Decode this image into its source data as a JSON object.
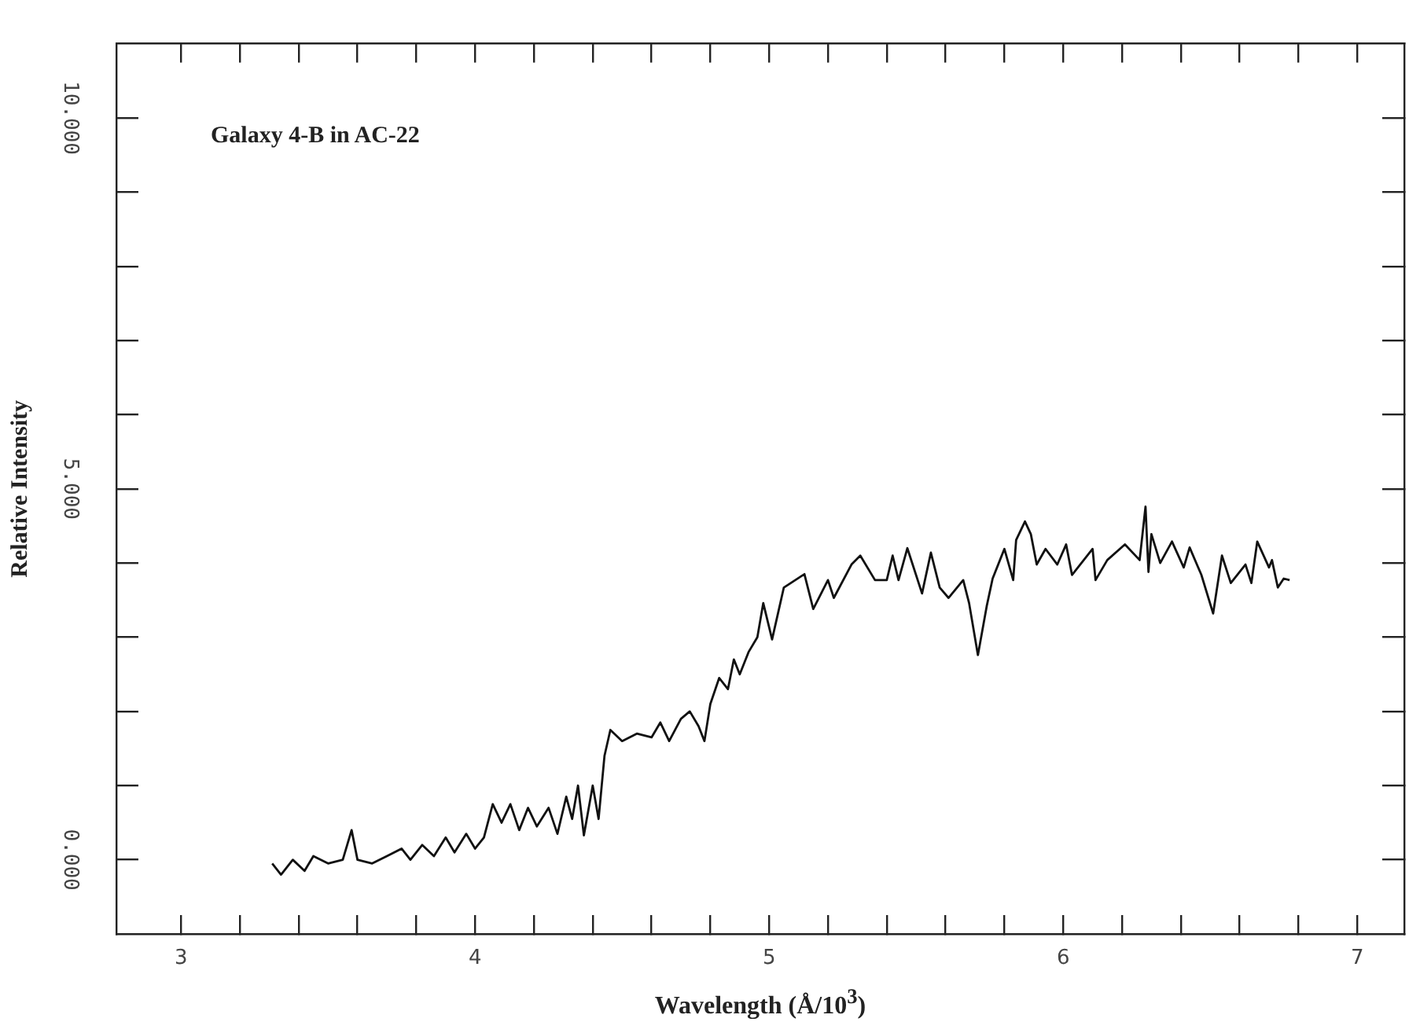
{
  "chart_data": {
    "type": "line",
    "title": "Galaxy 4-B in AC-22",
    "xlabel": "Wavelength (Å/10$^{3}$)",
    "ylabel": "Relative Intensity",
    "xlim": [
      2.78,
      7.16
    ],
    "ylim": [
      -1.0,
      11.0
    ],
    "xticks": [
      3,
      {
        "value": 3.2,
        "label": null
      },
      {
        "value": 3.4,
        "label": null
      },
      {
        "value": 3.6,
        "label": null
      },
      {
        "value": 3.8,
        "label": null
      },
      4,
      {
        "value": 4.2,
        "label": null
      },
      {
        "value": 4.4,
        "label": null
      },
      {
        "value": 4.6,
        "label": null
      },
      {
        "value": 4.8,
        "label": null
      },
      5,
      {
        "value": 5.2,
        "label": null
      },
      {
        "value": 5.4,
        "label": null
      },
      {
        "value": 5.6,
        "label": null
      },
      {
        "value": 5.8,
        "label": null
      },
      6,
      {
        "value": 6.2,
        "label": null
      },
      {
        "value": 6.4,
        "label": null
      },
      {
        "value": 6.6,
        "label": null
      },
      {
        "value": 6.8,
        "label": null
      },
      7
    ],
    "yticks": [
      {
        "value": 0,
        "label": "0.000"
      },
      {
        "value": 1,
        "label": null
      },
      {
        "value": 2,
        "label": null
      },
      {
        "value": 3,
        "label": null
      },
      {
        "value": 4,
        "label": null
      },
      {
        "value": 5,
        "label": "5.000"
      },
      {
        "value": 6,
        "label": null
      },
      {
        "value": 7,
        "label": null
      },
      {
        "value": 8,
        "label": null
      },
      {
        "value": 9,
        "label": null
      },
      {
        "value": 10,
        "label": "10.000"
      }
    ],
    "grid": false,
    "legend": false,
    "marker": "none",
    "line_style": "solid",
    "series": [
      {
        "color": "#111111",
        "x": [
          3.31,
          3.34,
          3.38,
          3.42,
          3.45,
          3.5,
          3.55,
          3.58,
          3.6,
          3.65,
          3.7,
          3.75,
          3.78,
          3.82,
          3.86,
          3.9,
          3.93,
          3.97,
          4.0,
          4.03,
          4.06,
          4.09,
          4.12,
          4.15,
          4.18,
          4.21,
          4.25,
          4.28,
          4.31,
          4.33,
          4.35,
          4.37,
          4.4,
          4.42,
          4.44,
          4.46,
          4.5,
          4.55,
          4.6,
          4.63,
          4.66,
          4.7,
          4.73,
          4.76,
          4.78,
          4.8,
          4.83,
          4.86,
          4.88,
          4.9,
          4.93,
          4.96,
          4.98,
          5.01,
          5.05,
          5.12,
          5.15,
          5.2,
          5.22,
          5.28,
          5.31,
          5.36,
          5.4,
          5.42,
          5.44,
          5.47,
          5.52,
          5.55,
          5.58,
          5.61,
          5.66,
          5.68,
          5.71,
          5.74,
          5.76,
          5.8,
          5.83,
          5.84,
          5.87,
          5.89,
          5.91,
          5.94,
          5.98,
          6.01,
          6.03,
          6.1,
          6.11,
          6.15,
          6.21,
          6.26,
          6.28,
          6.29,
          6.3,
          6.33,
          6.37,
          6.41,
          6.43,
          6.47,
          6.51,
          6.54,
          6.57,
          6.62,
          6.64,
          6.66,
          6.7,
          6.71,
          6.73,
          6.75,
          6.77
        ],
        "values": [
          -0.05,
          -0.2,
          0.0,
          -0.15,
          0.05,
          -0.05,
          0.0,
          0.4,
          0.0,
          -0.05,
          0.05,
          0.15,
          0.0,
          0.2,
          0.05,
          0.3,
          0.1,
          0.35,
          0.15,
          0.3,
          0.75,
          0.5,
          0.75,
          0.4,
          0.7,
          0.45,
          0.7,
          0.35,
          0.85,
          0.55,
          1.0,
          0.33,
          1.0,
          0.55,
          1.4,
          1.75,
          1.6,
          1.7,
          1.65,
          1.85,
          1.6,
          1.9,
          2.0,
          1.8,
          1.6,
          2.1,
          2.45,
          2.3,
          2.7,
          2.5,
          2.8,
          3.0,
          3.46,
          2.97,
          3.67,
          3.85,
          3.38,
          3.77,
          3.53,
          3.98,
          4.1,
          3.77,
          3.77,
          4.1,
          3.77,
          4.2,
          3.59,
          4.14,
          3.67,
          3.53,
          3.77,
          3.46,
          2.76,
          3.42,
          3.79,
          4.19,
          3.77,
          4.31,
          4.56,
          4.39,
          3.98,
          4.19,
          3.98,
          4.25,
          3.84,
          4.19,
          3.77,
          4.04,
          4.25,
          4.04,
          4.76,
          3.88,
          4.39,
          4.0,
          4.29,
          3.94,
          4.21,
          3.84,
          3.32,
          4.1,
          3.73,
          3.98,
          3.73,
          4.29,
          3.94,
          4.04,
          3.67,
          3.79,
          3.77
        ]
      }
    ]
  }
}
